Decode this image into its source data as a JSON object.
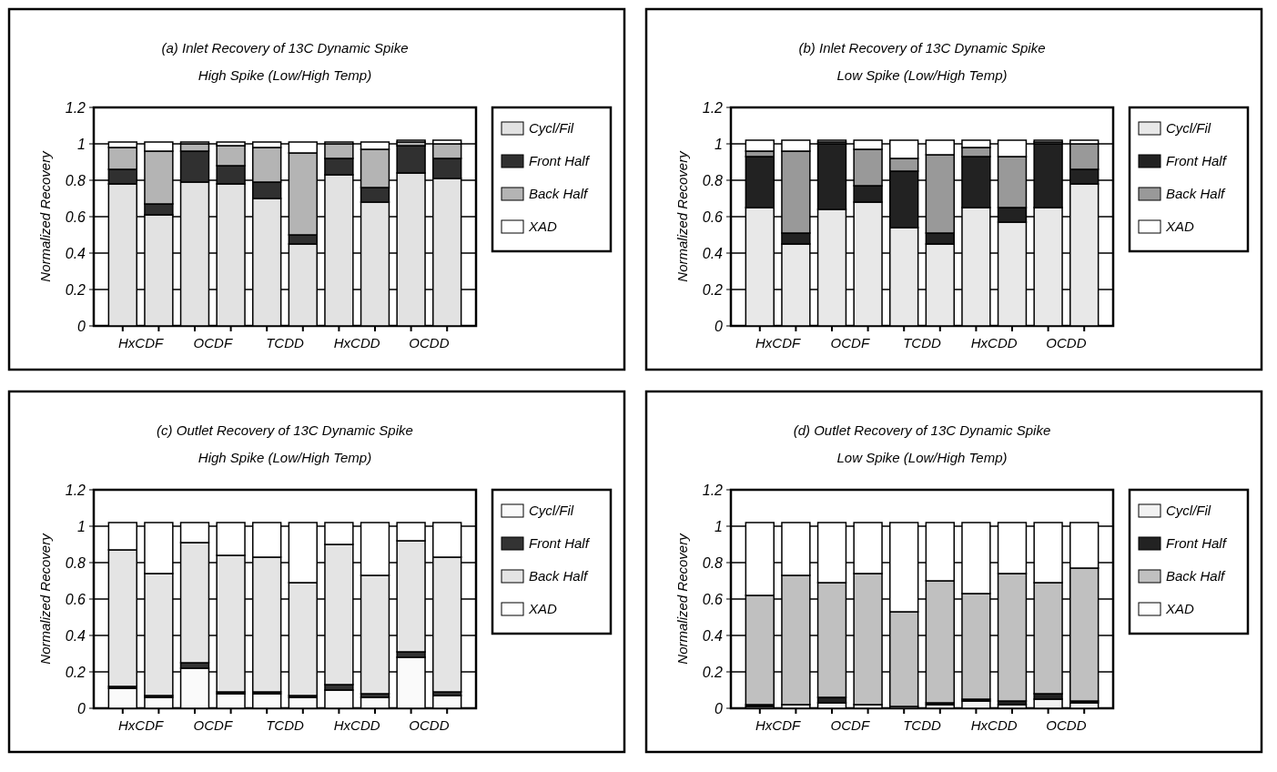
{
  "chart_data": [
    {
      "type": "bar",
      "stacked": true,
      "title": "(a) Inlet Recovery of 13C Dynamic Spike",
      "subtitle": "High Spike (Low/High Temp)",
      "ylabel": "Normalized Recovery",
      "categories": [
        "HxCDF",
        null,
        "OCDF",
        null,
        "TCDD",
        null,
        "HxCDD",
        null,
        "OCDD",
        null
      ],
      "ylim": [
        0,
        1.2
      ],
      "yticks": [
        0,
        0.2,
        0.4,
        0.6,
        0.8,
        1,
        1.2
      ],
      "grid": "y",
      "legend": "right",
      "series": [
        {
          "name": "Cycl/Fil",
          "color": "#e2e2e2",
          "values": [
            0.78,
            0.61,
            0.79,
            0.78,
            0.7,
            0.45,
            0.83,
            0.68,
            0.84,
            0.81
          ]
        },
        {
          "name": "Front Half",
          "color": "#303030",
          "values": [
            0.08,
            0.06,
            0.17,
            0.1,
            0.09,
            0.05,
            0.09,
            0.08,
            0.15,
            0.11
          ]
        },
        {
          "name": "Back Half",
          "color": "#b4b4b4",
          "values": [
            0.12,
            0.29,
            0.04,
            0.11,
            0.19,
            0.45,
            0.08,
            0.21,
            0.02,
            0.08
          ]
        },
        {
          "name": "XAD",
          "color": "#ffffff",
          "values": [
            0.03,
            0.05,
            0.01,
            0.02,
            0.03,
            0.06,
            0.01,
            0.04,
            0.01,
            0.02
          ]
        }
      ]
    },
    {
      "type": "bar",
      "stacked": true,
      "title": "(b) Inlet Recovery of 13C Dynamic Spike",
      "subtitle": "Low Spike (Low/High Temp)",
      "ylabel": "Normalized Recovery",
      "categories": [
        "HxCDF",
        null,
        "OCDF",
        null,
        "TCDD",
        null,
        "HxCDD",
        null,
        "OCDD",
        null
      ],
      "ylim": [
        0,
        1.2
      ],
      "yticks": [
        0,
        0.2,
        0.4,
        0.6,
        0.8,
        1,
        1.2
      ],
      "grid": "y",
      "legend": "right",
      "series": [
        {
          "name": "Cycl/Fil",
          "color": "#e8e8e8",
          "values": [
            0.65,
            0.45,
            0.64,
            0.68,
            0.54,
            0.45,
            0.65,
            0.57,
            0.65,
            0.78
          ]
        },
        {
          "name": "Front Half",
          "color": "#222222",
          "values": [
            0.28,
            0.06,
            0.36,
            0.09,
            0.31,
            0.06,
            0.28,
            0.08,
            0.35,
            0.08
          ]
        },
        {
          "name": "Back Half",
          "color": "#999999",
          "values": [
            0.03,
            0.45,
            0.01,
            0.2,
            0.07,
            0.43,
            0.05,
            0.28,
            0.01,
            0.14
          ]
        },
        {
          "name": "XAD",
          "color": "#ffffff",
          "values": [
            0.06,
            0.06,
            0.01,
            0.05,
            0.1,
            0.08,
            0.04,
            0.09,
            0.01,
            0.02
          ]
        }
      ]
    },
    {
      "type": "bar",
      "stacked": true,
      "title": "(c) Outlet Recovery of 13C Dynamic Spike",
      "subtitle": "High Spike (Low/High Temp)",
      "ylabel": "Normalized Recovery",
      "categories": [
        "HxCDF",
        null,
        "OCDF",
        null,
        "TCDD",
        null,
        "HxCDD",
        null,
        "OCDD",
        null
      ],
      "ylim": [
        0,
        1.2
      ],
      "yticks": [
        0,
        0.2,
        0.4,
        0.6,
        0.8,
        1,
        1.2
      ],
      "grid": "y",
      "legend": "right",
      "series": [
        {
          "name": "Cycl/Fil",
          "color": "#fafafa",
          "values": [
            0.11,
            0.06,
            0.22,
            0.08,
            0.08,
            0.06,
            0.1,
            0.06,
            0.28,
            0.07
          ]
        },
        {
          "name": "Front Half",
          "color": "#333333",
          "values": [
            0.01,
            0.01,
            0.03,
            0.01,
            0.01,
            0.01,
            0.03,
            0.02,
            0.03,
            0.02
          ]
        },
        {
          "name": "Back Half",
          "color": "#e4e4e4",
          "values": [
            0.75,
            0.67,
            0.66,
            0.75,
            0.74,
            0.62,
            0.77,
            0.65,
            0.61,
            0.74
          ]
        },
        {
          "name": "XAD",
          "color": "#ffffff",
          "values": [
            0.15,
            0.28,
            0.11,
            0.18,
            0.19,
            0.33,
            0.12,
            0.29,
            0.1,
            0.19
          ]
        }
      ]
    },
    {
      "type": "bar",
      "stacked": true,
      "title": "(d) Outlet Recovery of 13C Dynamic Spike",
      "subtitle": "Low Spike (Low/High Temp)",
      "ylabel": "Normalized Recovery",
      "categories": [
        "HxCDF",
        null,
        "OCDF",
        null,
        "TCDD",
        null,
        "HxCDD",
        null,
        "OCDD",
        null
      ],
      "ylim": [
        0,
        1.2
      ],
      "yticks": [
        0,
        0.2,
        0.4,
        0.6,
        0.8,
        1,
        1.2
      ],
      "grid": "y",
      "legend": "right",
      "series": [
        {
          "name": "Cycl/Fil",
          "color": "#f2f2f2",
          "values": [
            0.01,
            0.02,
            0.03,
            0.02,
            0.01,
            0.02,
            0.04,
            0.02,
            0.05,
            0.03
          ]
        },
        {
          "name": "Front Half",
          "color": "#222222",
          "values": [
            0.01,
            0,
            0.03,
            0,
            0,
            0.01,
            0.01,
            0.02,
            0.03,
            0.01
          ]
        },
        {
          "name": "Back Half",
          "color": "#c0c0c0",
          "values": [
            0.6,
            0.71,
            0.63,
            0.72,
            0.52,
            0.67,
            0.58,
            0.7,
            0.61,
            0.73
          ]
        },
        {
          "name": "XAD",
          "color": "#ffffff",
          "values": [
            0.4,
            0.29,
            0.33,
            0.28,
            0.49,
            0.32,
            0.39,
            0.28,
            0.33,
            0.25
          ]
        }
      ]
    }
  ]
}
